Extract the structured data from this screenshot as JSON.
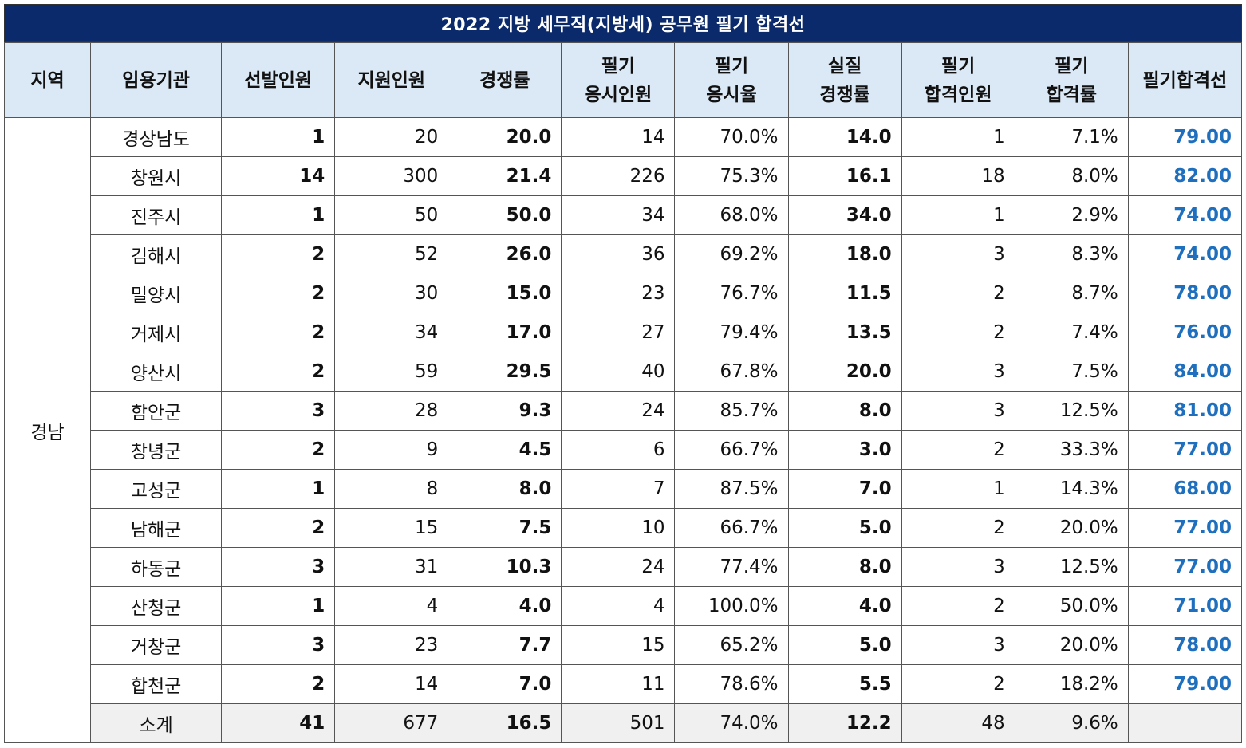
{
  "title": "2022 지방 세무직(지방세) 공무원 필기 합격선",
  "headers": [
    [
      "지역"
    ],
    [
      "임용기관"
    ],
    [
      "선발인원"
    ],
    [
      "지원인원"
    ],
    [
      "경쟁률"
    ],
    [
      "필기",
      "응시인원"
    ],
    [
      "필기",
      "응시율"
    ],
    [
      "실질",
      "경쟁률"
    ],
    [
      "필기",
      "합격인원"
    ],
    [
      "필기",
      "합격률"
    ],
    [
      "필기합격선"
    ]
  ],
  "region": "경남",
  "rows": [
    {
      "org": "경상남도",
      "select": "1",
      "apply": "20",
      "ratio": "20.0",
      "exam": "14",
      "exam_rate": "70.0%",
      "real_ratio": "14.0",
      "pass": "1",
      "pass_rate": "7.1%",
      "cutoff": "79.00"
    },
    {
      "org": "창원시",
      "select": "14",
      "apply": "300",
      "ratio": "21.4",
      "exam": "226",
      "exam_rate": "75.3%",
      "real_ratio": "16.1",
      "pass": "18",
      "pass_rate": "8.0%",
      "cutoff": "82.00"
    },
    {
      "org": "진주시",
      "select": "1",
      "apply": "50",
      "ratio": "50.0",
      "exam": "34",
      "exam_rate": "68.0%",
      "real_ratio": "34.0",
      "pass": "1",
      "pass_rate": "2.9%",
      "cutoff": "74.00"
    },
    {
      "org": "김해시",
      "select": "2",
      "apply": "52",
      "ratio": "26.0",
      "exam": "36",
      "exam_rate": "69.2%",
      "real_ratio": "18.0",
      "pass": "3",
      "pass_rate": "8.3%",
      "cutoff": "74.00"
    },
    {
      "org": "밀양시",
      "select": "2",
      "apply": "30",
      "ratio": "15.0",
      "exam": "23",
      "exam_rate": "76.7%",
      "real_ratio": "11.5",
      "pass": "2",
      "pass_rate": "8.7%",
      "cutoff": "78.00"
    },
    {
      "org": "거제시",
      "select": "2",
      "apply": "34",
      "ratio": "17.0",
      "exam": "27",
      "exam_rate": "79.4%",
      "real_ratio": "13.5",
      "pass": "2",
      "pass_rate": "7.4%",
      "cutoff": "76.00"
    },
    {
      "org": "양산시",
      "select": "2",
      "apply": "59",
      "ratio": "29.5",
      "exam": "40",
      "exam_rate": "67.8%",
      "real_ratio": "20.0",
      "pass": "3",
      "pass_rate": "7.5%",
      "cutoff": "84.00"
    },
    {
      "org": "함안군",
      "select": "3",
      "apply": "28",
      "ratio": "9.3",
      "exam": "24",
      "exam_rate": "85.7%",
      "real_ratio": "8.0",
      "pass": "3",
      "pass_rate": "12.5%",
      "cutoff": "81.00"
    },
    {
      "org": "창녕군",
      "select": "2",
      "apply": "9",
      "ratio": "4.5",
      "exam": "6",
      "exam_rate": "66.7%",
      "real_ratio": "3.0",
      "pass": "2",
      "pass_rate": "33.3%",
      "cutoff": "77.00"
    },
    {
      "org": "고성군",
      "select": "1",
      "apply": "8",
      "ratio": "8.0",
      "exam": "7",
      "exam_rate": "87.5%",
      "real_ratio": "7.0",
      "pass": "1",
      "pass_rate": "14.3%",
      "cutoff": "68.00"
    },
    {
      "org": "남해군",
      "select": "2",
      "apply": "15",
      "ratio": "7.5",
      "exam": "10",
      "exam_rate": "66.7%",
      "real_ratio": "5.0",
      "pass": "2",
      "pass_rate": "20.0%",
      "cutoff": "77.00"
    },
    {
      "org": "하동군",
      "select": "3",
      "apply": "31",
      "ratio": "10.3",
      "exam": "24",
      "exam_rate": "77.4%",
      "real_ratio": "8.0",
      "pass": "3",
      "pass_rate": "12.5%",
      "cutoff": "77.00"
    },
    {
      "org": "산청군",
      "select": "1",
      "apply": "4",
      "ratio": "4.0",
      "exam": "4",
      "exam_rate": "100.0%",
      "real_ratio": "4.0",
      "pass": "2",
      "pass_rate": "50.0%",
      "cutoff": "71.00"
    },
    {
      "org": "거창군",
      "select": "3",
      "apply": "23",
      "ratio": "7.7",
      "exam": "15",
      "exam_rate": "65.2%",
      "real_ratio": "5.0",
      "pass": "3",
      "pass_rate": "20.0%",
      "cutoff": "78.00"
    },
    {
      "org": "합천군",
      "select": "2",
      "apply": "14",
      "ratio": "7.0",
      "exam": "11",
      "exam_rate": "78.6%",
      "real_ratio": "5.5",
      "pass": "2",
      "pass_rate": "18.2%",
      "cutoff": "79.00"
    }
  ],
  "subtotal": {
    "org": "소계",
    "select": "41",
    "apply": "677",
    "ratio": "16.5",
    "exam": "501",
    "exam_rate": "74.0%",
    "real_ratio": "12.2",
    "pass": "48",
    "pass_rate": "9.6%",
    "cutoff": ""
  },
  "colors": {
    "title_bg": "#0b2a6b",
    "header_bg": "#dbe9f6",
    "cutoff_text": "#1f6fbf",
    "subtotal_bg": "#f0f0f0"
  }
}
